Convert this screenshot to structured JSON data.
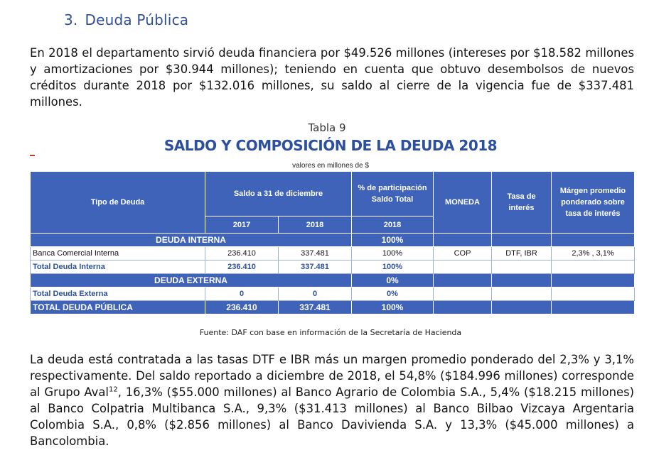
{
  "section": {
    "number": "3.",
    "title": "Deuda Pública"
  },
  "intro": "En 2018 el departamento sirvió deuda financiera por $49.526 millones (intereses por $18.582 millones y amortizaciones por $30.944 millones); teniendo en cuenta que obtuvo desembolsos de nuevos créditos durante 2018 por $132.016 millones, su saldo al cierre de la vigencia fue de $337.481 millones.",
  "table": {
    "caption": "Tabla 9",
    "title": "SALDO Y COMPOSICIÓN DE LA DEUDA 2018",
    "units": "valores en millones de $",
    "headers": {
      "tipo": "Tipo de Deuda",
      "saldo": "Saldo a 31 de diciembre",
      "participacion": "% de participación Saldo Total",
      "moneda": "MONEDA",
      "tasa": "Tasa de interés",
      "margen": "Márgen promedio ponderado sobre tasa de interés",
      "year_2017": "2017",
      "year_2018": "2018",
      "part_year": "2018"
    },
    "interna": {
      "label": "DEUDA INTERNA",
      "pct": "100%",
      "row": {
        "name": "Banca Comercial Interna",
        "v2017": "236.410",
        "v2018": "337.481",
        "pct": "100%",
        "moneda": "COP",
        "tasa": "DTF, IBR",
        "margen": "2,3% , 3,1%"
      },
      "total": {
        "name": "Total Deuda Interna",
        "v2017": "236.410",
        "v2018": "337.481",
        "pct": "100%"
      }
    },
    "externa": {
      "label": "DEUDA EXTERNA",
      "pct": "0%",
      "total": {
        "name": "Total Deuda Externa",
        "v2017": "0",
        "v2018": "0",
        "pct": "0%"
      }
    },
    "grand_total": {
      "name": "TOTAL DEUDA PÚBLICA",
      "v2017": "236.410",
      "v2018": "337.481",
      "pct": "100%"
    },
    "source": "Fuente: DAF con base en información de la Secretaría de Hacienda"
  },
  "closing": {
    "part1": "La deuda está contratada a las tasas DTF e IBR más un margen promedio ponderado del 2,3% y 3,1% respectivamente. Del saldo reportado a diciembre de 2018, el 54,8% ($184.996 millones) corresponde al Grupo Aval",
    "footnote": "12",
    "part2": ", 16,3% ($55.000 millones) al Banco Agrario de Colombia S.A., 5,4% ($18.215 millones) al Banco Colpatria Multibanca S.A., 9,3% ($31.413 millones) al Banco Bilbao Vizcaya Argentaria Colombia S.A., 0,8% ($2.856 millones) al Banco Davivienda S.A. y 13,3% ($45.000 millones) a Bancolombia."
  }
}
